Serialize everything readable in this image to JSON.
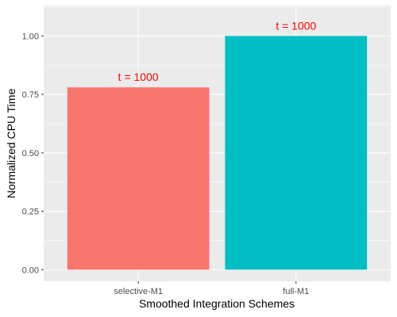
{
  "chart_data": {
    "type": "bar",
    "categories": [
      "selective-M1",
      "full-M1"
    ],
    "values": [
      0.78,
      1.0
    ],
    "bar_colors": [
      "#F8766D",
      "#00BFC4"
    ],
    "bar_labels": [
      "t = 1000",
      "t = 1000"
    ],
    "bar_label_color": "#FF0000",
    "xlabel": "Smoothed Integration Schemes",
    "ylabel": "Normalized CPU Time",
    "ylim": [
      -0.05,
      1.13
    ],
    "yticks": [
      0.0,
      0.25,
      0.5,
      0.75,
      1.0
    ],
    "ytick_labels": [
      "0.00",
      "0.25",
      "0.50",
      "0.75",
      "1.00"
    ],
    "grid": true,
    "panel_background": "#EBEBEB",
    "gridline_color": "#FFFFFF"
  }
}
